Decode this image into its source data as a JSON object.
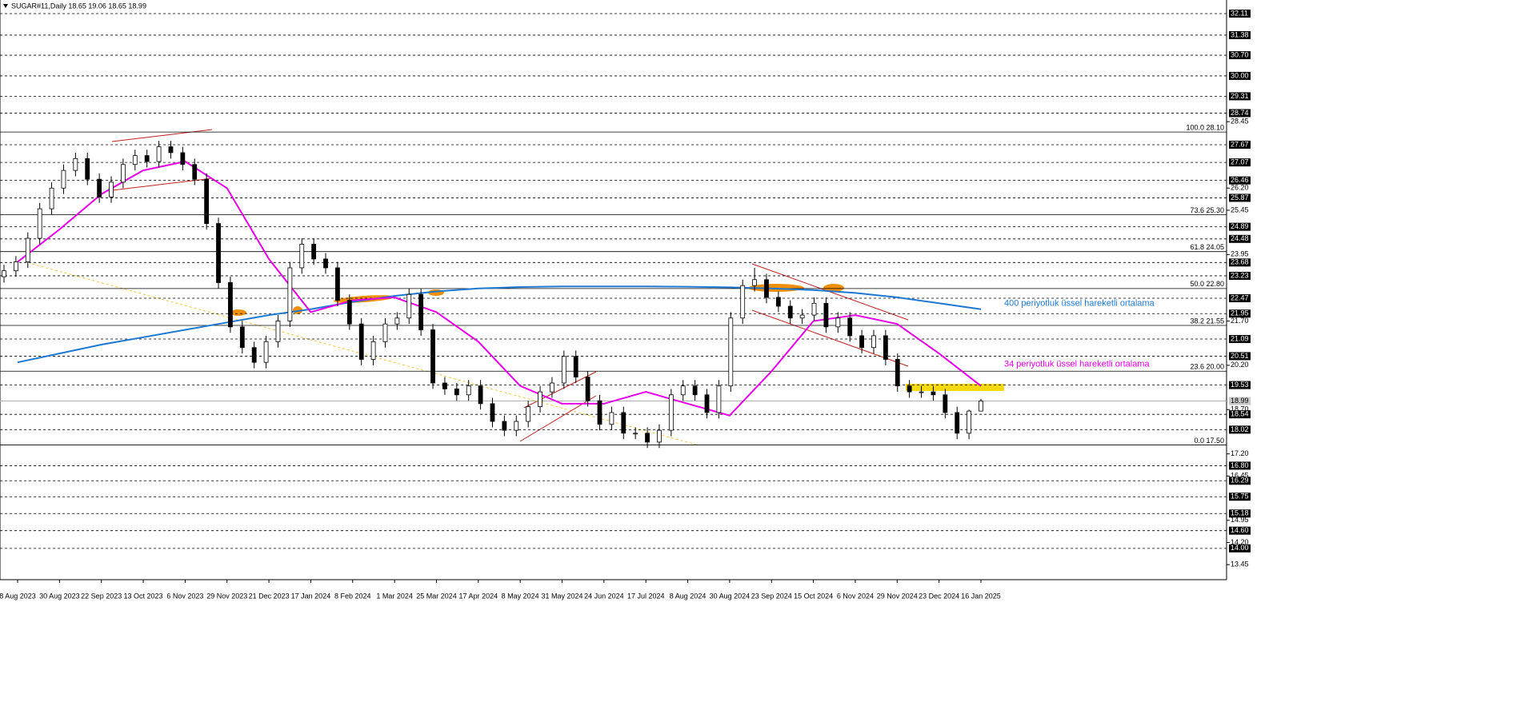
{
  "chart_data": {
    "type": "candlestick",
    "title": "SUGAR#11,Daily  18.65 19.06 18.65 18.99",
    "categories": [
      "8 Aug 2023",
      "30 Aug 2023",
      "22 Sep 2023",
      "13 Oct 2023",
      "6 Nov 2023",
      "29 Nov 2023",
      "21 Dec 2023",
      "17 Jan 2024",
      "8 Feb 2024",
      "1 Mar 2024",
      "25 Mar 2024",
      "17 Apr 2024",
      "8 May 2024",
      "31 May 2024",
      "24 Jun 2024",
      "17 Jul 2024",
      "8 Aug 2024",
      "30 Aug 2024",
      "23 Sep 2024",
      "15 Oct 2024",
      "6 Nov 2024",
      "29 Nov 2024",
      "23 Dec 2024",
      "16 Jan 2025"
    ],
    "candles": [
      [
        23.2,
        23.6,
        23.0,
        23.4
      ],
      [
        23.4,
        23.9,
        23.2,
        23.7
      ],
      [
        23.7,
        24.7,
        23.5,
        24.5
      ],
      [
        24.5,
        25.7,
        24.3,
        25.5
      ],
      [
        25.5,
        26.4,
        25.3,
        26.2
      ],
      [
        26.2,
        27.0,
        26.0,
        26.8
      ],
      [
        26.8,
        27.4,
        26.6,
        27.2
      ],
      [
        27.2,
        27.4,
        26.3,
        26.5
      ],
      [
        26.5,
        26.7,
        25.7,
        25.9
      ],
      [
        25.9,
        26.6,
        25.7,
        26.4
      ],
      [
        26.4,
        27.2,
        26.2,
        27.0
      ],
      [
        27.0,
        27.5,
        26.8,
        27.3
      ],
      [
        27.3,
        27.5,
        26.9,
        27.1
      ],
      [
        27.1,
        27.8,
        26.9,
        27.6
      ],
      [
        27.6,
        27.8,
        27.2,
        27.4
      ],
      [
        27.4,
        27.6,
        26.8,
        27.0
      ],
      [
        27.0,
        27.2,
        26.3,
        26.5
      ],
      [
        26.5,
        26.7,
        24.8,
        25.0
      ],
      [
        25.0,
        25.2,
        22.8,
        23.0
      ],
      [
        23.0,
        23.2,
        21.3,
        21.5
      ],
      [
        21.5,
        21.7,
        20.6,
        20.8
      ],
      [
        20.8,
        21.0,
        20.1,
        20.3
      ],
      [
        20.3,
        21.2,
        20.1,
        21.0
      ],
      [
        21.0,
        21.9,
        20.8,
        21.7
      ],
      [
        21.7,
        23.7,
        21.5,
        23.5
      ],
      [
        23.5,
        24.5,
        23.3,
        24.3
      ],
      [
        24.3,
        24.5,
        23.6,
        23.8
      ],
      [
        23.8,
        24.0,
        23.3,
        23.5
      ],
      [
        23.5,
        23.7,
        22.2,
        22.4
      ],
      [
        22.4,
        22.6,
        21.4,
        21.6
      ],
      [
        21.6,
        21.8,
        20.2,
        20.4
      ],
      [
        20.4,
        21.2,
        20.2,
        21.0
      ],
      [
        21.0,
        21.8,
        20.8,
        21.6
      ],
      [
        21.6,
        22.0,
        21.4,
        21.8
      ],
      [
        21.8,
        22.8,
        21.6,
        22.6
      ],
      [
        22.6,
        22.8,
        21.2,
        21.4
      ],
      [
        21.4,
        21.6,
        19.4,
        19.6
      ],
      [
        19.6,
        19.8,
        19.2,
        19.4
      ],
      [
        19.4,
        19.6,
        19.0,
        19.2
      ],
      [
        19.2,
        19.7,
        19.0,
        19.5
      ],
      [
        19.5,
        19.7,
        18.7,
        18.9
      ],
      [
        18.9,
        19.1,
        18.1,
        18.3
      ],
      [
        18.3,
        18.5,
        17.8,
        18.0
      ],
      [
        18.0,
        18.5,
        17.8,
        18.3
      ],
      [
        18.3,
        19.0,
        18.1,
        18.8
      ],
      [
        18.8,
        19.5,
        18.6,
        19.3
      ],
      [
        19.3,
        19.8,
        19.1,
        19.6
      ],
      [
        19.6,
        20.7,
        19.4,
        20.5
      ],
      [
        20.5,
        20.7,
        19.6,
        19.8
      ],
      [
        19.8,
        20.0,
        18.8,
        19.0
      ],
      [
        19.0,
        19.2,
        18.0,
        18.2
      ],
      [
        18.2,
        18.8,
        18.0,
        18.6
      ],
      [
        18.6,
        18.8,
        17.7,
        17.9
      ],
      [
        17.9,
        18.1,
        17.7,
        17.9
      ],
      [
        17.9,
        18.1,
        17.4,
        17.6
      ],
      [
        17.6,
        18.2,
        17.4,
        18.0
      ],
      [
        18.0,
        19.4,
        17.8,
        19.2
      ],
      [
        19.2,
        19.7,
        19.0,
        19.5
      ],
      [
        19.5,
        19.7,
        19.0,
        19.2
      ],
      [
        19.2,
        19.4,
        18.4,
        18.6
      ],
      [
        18.6,
        19.7,
        18.4,
        19.5
      ],
      [
        19.5,
        22.0,
        19.3,
        21.8
      ],
      [
        21.8,
        23.1,
        21.6,
        22.9
      ],
      [
        22.9,
        23.5,
        22.7,
        23.1
      ],
      [
        23.1,
        23.3,
        22.3,
        22.5
      ],
      [
        22.5,
        22.7,
        22.0,
        22.2
      ],
      [
        22.2,
        22.4,
        21.6,
        21.8
      ],
      [
        21.8,
        22.1,
        21.6,
        21.9
      ],
      [
        21.9,
        22.5,
        21.7,
        22.3
      ],
      [
        22.3,
        22.5,
        21.3,
        21.5
      ],
      [
        21.5,
        22.0,
        21.3,
        21.8
      ],
      [
        21.8,
        22.0,
        21.0,
        21.2
      ],
      [
        21.2,
        21.4,
        20.6,
        20.8
      ],
      [
        20.8,
        21.4,
        20.6,
        21.2
      ],
      [
        21.2,
        21.4,
        20.2,
        20.4
      ],
      [
        20.4,
        20.6,
        19.3,
        19.5
      ],
      [
        19.5,
        19.7,
        19.1,
        19.3
      ],
      [
        19.3,
        19.5,
        19.1,
        19.3
      ],
      [
        19.3,
        19.5,
        19.0,
        19.2
      ],
      [
        19.2,
        19.4,
        18.4,
        18.6
      ],
      [
        18.6,
        18.8,
        17.7,
        17.9
      ],
      [
        17.9,
        18.7,
        17.7,
        18.65
      ],
      [
        18.65,
        19.06,
        18.65,
        18.99
      ]
    ],
    "series": [
      {
        "name": "400 periyotluk üssel hareketli ortalama",
        "color": "#1e78d2",
        "values": [
          20.3,
          20.6,
          20.9,
          21.15,
          21.4,
          21.65,
          21.9,
          22.1,
          22.35,
          22.55,
          22.7,
          22.8,
          22.85,
          22.87,
          22.87,
          22.87,
          22.86,
          22.84,
          22.8,
          22.75,
          22.65,
          22.5,
          22.3,
          22.1
        ]
      },
      {
        "name": "34 periyotluk üssel hareketli ortalama",
        "color": "#e600e6",
        "values": [
          23.7,
          24.8,
          26.0,
          26.8,
          27.1,
          26.2,
          23.8,
          22.0,
          22.4,
          22.5,
          22.0,
          21.0,
          19.5,
          18.9,
          18.9,
          19.3,
          18.9,
          18.5,
          20.0,
          21.7,
          21.9,
          21.6,
          20.6,
          19.5
        ]
      }
    ],
    "ylim": [
      12.94,
      32.57
    ],
    "yticks": [
      {
        "value": 13.45,
        "label": "13.45"
      },
      {
        "value": 14.2,
        "label": "14.20"
      },
      {
        "value": 14.95,
        "label": "14.95"
      },
      {
        "value": 16.45,
        "label": "16.45"
      },
      {
        "value": 17.2,
        "label": "17.20"
      },
      {
        "value": 18.7,
        "label": "18.70"
      },
      {
        "value": 20.2,
        "label": "20.20"
      },
      {
        "value": 21.7,
        "label": "21.70"
      },
      {
        "value": 23.95,
        "label": "23.95"
      },
      {
        "value": 25.45,
        "label": "25.45"
      },
      {
        "value": 26.2,
        "label": "26.20"
      },
      {
        "value": 28.45,
        "label": "28.45"
      }
    ],
    "levels": [
      {
        "value": 32.11,
        "label": "32.11"
      },
      {
        "value": 31.38,
        "label": "31.38"
      },
      {
        "value": 30.7,
        "label": "30.70"
      },
      {
        "value": 30.0,
        "label": "30.00"
      },
      {
        "value": 29.31,
        "label": "29.31"
      },
      {
        "value": 28.74,
        "label": "28.74"
      },
      {
        "value": 27.67,
        "label": "27.67"
      },
      {
        "value": 27.07,
        "label": "27.07"
      },
      {
        "value": 26.46,
        "label": "26.46"
      },
      {
        "value": 25.87,
        "label": "25.87"
      },
      {
        "value": 24.89,
        "label": "24.89"
      },
      {
        "value": 24.48,
        "label": "24.48"
      },
      {
        "value": 23.68,
        "label": "23.68"
      },
      {
        "value": 23.23,
        "label": "23.23"
      },
      {
        "value": 22.47,
        "label": "22.47"
      },
      {
        "value": 21.95,
        "label": "21.95"
      },
      {
        "value": 21.09,
        "label": "21.09"
      },
      {
        "value": 20.51,
        "label": "20.51"
      },
      {
        "value": 19.53,
        "label": "19.53"
      },
      {
        "value": 18.54,
        "label": "18.54"
      },
      {
        "value": 18.02,
        "label": "18.02"
      },
      {
        "value": 16.8,
        "label": "16.80"
      },
      {
        "value": 16.29,
        "label": "16.29"
      },
      {
        "value": 15.75,
        "label": "15.75"
      },
      {
        "value": 15.18,
        "label": "15.18"
      },
      {
        "value": 14.6,
        "label": "14.60"
      },
      {
        "value": 14.0,
        "label": "14.00"
      }
    ],
    "fibo": [
      {
        "value": 28.1,
        "label": "100.0 28.10"
      },
      {
        "value": 25.3,
        "label": "73.6 25.30"
      },
      {
        "value": 24.05,
        "label": "61.8 24.05"
      },
      {
        "value": 22.8,
        "label": "50.0 22.80"
      },
      {
        "value": 21.55,
        "label": "38.2 21.55"
      },
      {
        "value": 20.0,
        "label": "23.6 20.00"
      },
      {
        "value": 17.5,
        "label": "0.0 17.50"
      }
    ],
    "last_price": {
      "value": 18.99,
      "label": "18.99"
    }
  }
}
